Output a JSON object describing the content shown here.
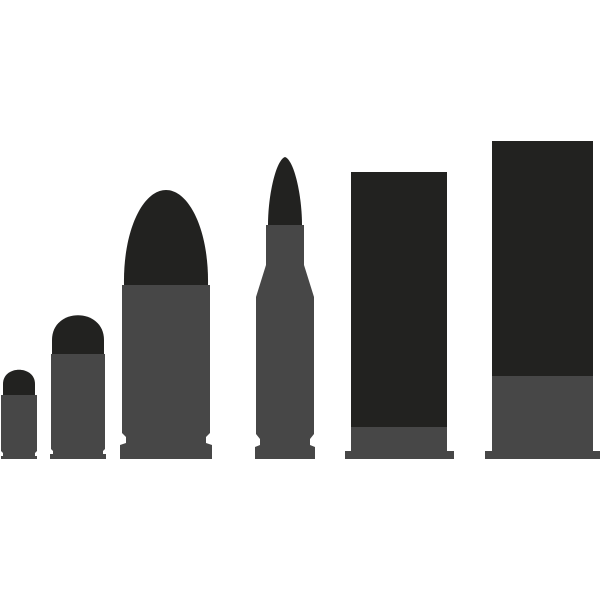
{
  "colors": {
    "background": "#ffffff",
    "projectile": "#222220",
    "casing": "#474747"
  },
  "cartridges": [
    {
      "name": "small-pistol-cartridge",
      "icon": "round-nose-bullet-icon"
    },
    {
      "name": "medium-pistol-cartridge",
      "icon": "round-nose-bullet-icon"
    },
    {
      "name": "large-pistol-cartridge",
      "icon": "ogive-bullet-icon"
    },
    {
      "name": "rifle-cartridge",
      "icon": "pointed-bullet-icon"
    },
    {
      "name": "short-shotgun-shell",
      "icon": "shotgun-shell-icon"
    },
    {
      "name": "long-shotgun-shell",
      "icon": "shotgun-shell-icon"
    }
  ]
}
